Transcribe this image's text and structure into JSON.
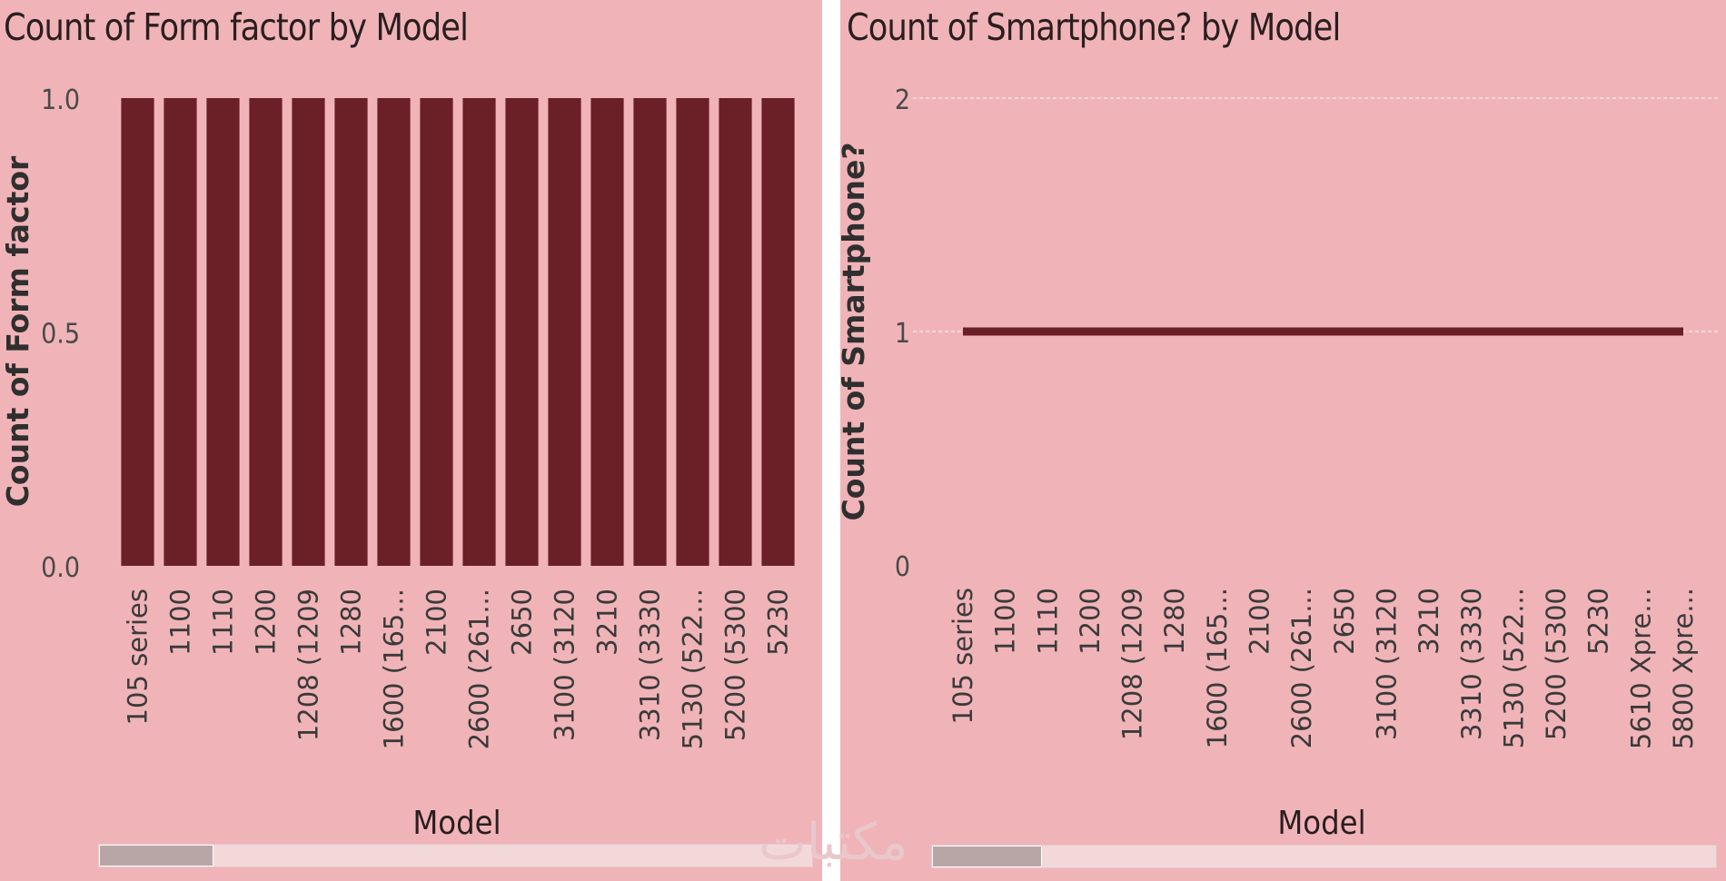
{
  "charts": {
    "left": {
      "title": "Count of Form factor by Model",
      "scrollbar": {
        "thumb_fraction": 0.16
      }
    },
    "right": {
      "title": "Count of Smartphone? by Model",
      "scrollbar": {
        "thumb_fraction": 0.14
      }
    }
  },
  "watermark": "مكتبات",
  "colors": {
    "background": "#f0b4b8",
    "bar": "#6b1f27",
    "line": "#6b1f27",
    "text": "#3a3a3a"
  },
  "chart_data": [
    {
      "type": "bar",
      "title": "Count of Form factor by Model",
      "xlabel": "Model",
      "ylabel": "Count of Form factor",
      "ylim": [
        0,
        1
      ],
      "yticks": [
        "0.0",
        "0.5",
        "1.0"
      ],
      "categories": [
        "105 series",
        "1100",
        "1110",
        "1200",
        "1208 (1209",
        "1280",
        "1600 (165...",
        "2100",
        "2600 (261...",
        "2650",
        "3100 (3120",
        "3210",
        "3310 (3330",
        "5130 (522...",
        "5200 (5300",
        "5230"
      ],
      "values": [
        1,
        1,
        1,
        1,
        1,
        1,
        1,
        1,
        1,
        1,
        1,
        1,
        1,
        1,
        1,
        1
      ],
      "grid": false
    },
    {
      "type": "line",
      "title": "Count of Smartphone? by Model",
      "xlabel": "Model",
      "ylabel": "Count of Smartphone?",
      "ylim": [
        0,
        2
      ],
      "yticks": [
        "0",
        "1",
        "2"
      ],
      "categories": [
        "105 series",
        "1100",
        "1110",
        "1200",
        "1208 (1209",
        "1280",
        "1600 (165...",
        "2100",
        "2600 (261...",
        "2650",
        "3100 (3120",
        "3210",
        "3310 (3330",
        "5130 (522...",
        "5200 (5300",
        "5230",
        "5610 Xpre...",
        "5800 Xpre..."
      ],
      "values": [
        1,
        1,
        1,
        1,
        1,
        1,
        1,
        1,
        1,
        1,
        1,
        1,
        1,
        1,
        1,
        1,
        1,
        1
      ],
      "grid": true
    }
  ]
}
